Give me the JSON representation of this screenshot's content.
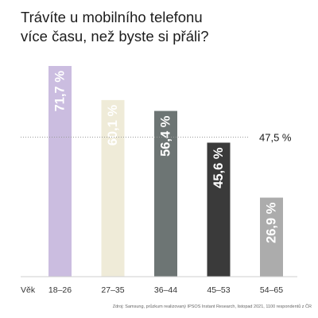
{
  "title": {
    "line1": "Trávíte u mobilního telefonu",
    "line2": "více času, než byste si přáli?"
  },
  "source": "Zdroj: Samsung, průzkum realizovaný IPSOS Instant Research, listopad 2021, 1100 respondentů z ČR",
  "chart_data": {
    "type": "bar",
    "title": "Trávíte u mobilního telefonu více času, než byste si přáli?",
    "xlabel": "Věk",
    "ylabel": "",
    "categories": [
      "18–26",
      "27–35",
      "36–44",
      "45–53",
      "54–65"
    ],
    "values": [
      71.7,
      60.1,
      56.4,
      45.6,
      26.9
    ],
    "value_labels": [
      "71,7 %",
      "60,1 %",
      "56,4 %",
      "45,6 %",
      "26,9 %"
    ],
    "ylim": [
      0,
      75
    ],
    "grid": false,
    "reference_line": {
      "value": 47.5,
      "label": "47,5 %",
      "style": "dotted"
    },
    "colors": [
      "#cbbde0",
      "#efebd8",
      "#6d7574",
      "#3a3a3a",
      "#acacac"
    ],
    "label_colors": [
      "#ffffff",
      "#ffffff",
      "#ffffff",
      "#ffffff",
      "#ffffff"
    ]
  }
}
